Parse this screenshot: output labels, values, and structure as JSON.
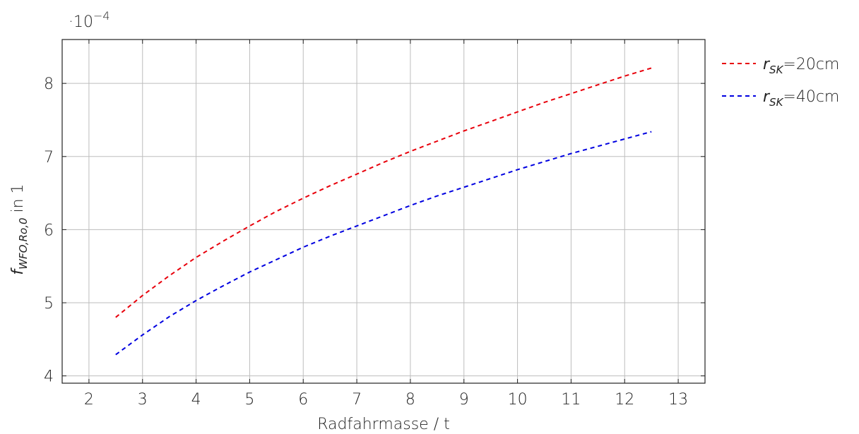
{
  "chart_data": {
    "type": "line",
    "xlabel": "Radfahrmasse / t",
    "ylabel_main": "f",
    "ylabel_sub": "WFO,Ro,0",
    "ylabel_suffix": " in 1",
    "y_scale_base": "·10",
    "y_scale_exp": "−4",
    "xlim": [
      1.5,
      13.5
    ],
    "ylim": [
      3.9,
      8.6
    ],
    "xticks": [
      2,
      3,
      4,
      5,
      6,
      7,
      8,
      9,
      10,
      11,
      12,
      13
    ],
    "yticks": [
      4,
      5,
      6,
      7,
      8
    ],
    "grid": true,
    "legend_position": "right",
    "series": [
      {
        "name_main": "r",
        "name_sub": "SK",
        "name_suffix": "=20cm",
        "color": "#e8000b",
        "dash": "dashed",
        "x": [
          2.5,
          3,
          3.5,
          4,
          4.5,
          5,
          5.5,
          6,
          6.5,
          7,
          7.5,
          8,
          8.5,
          9,
          9.5,
          10,
          10.5,
          11,
          11.5,
          12,
          12.5
        ],
        "y": [
          4.8,
          5.1,
          5.37,
          5.62,
          5.84,
          6.05,
          6.25,
          6.43,
          6.6,
          6.76,
          6.92,
          7.07,
          7.21,
          7.35,
          7.48,
          7.61,
          7.74,
          7.86,
          7.98,
          8.1,
          8.21
        ]
      },
      {
        "name_main": "r",
        "name_sub": "SK",
        "name_suffix": "=40cm",
        "color": "#0000e0",
        "dash": "dashed",
        "x": [
          2.5,
          3,
          3.5,
          4,
          4.5,
          5,
          5.5,
          6,
          6.5,
          7,
          7.5,
          8,
          8.5,
          9,
          9.5,
          10,
          10.5,
          11,
          11.5,
          12,
          12.5
        ],
        "y": [
          4.29,
          4.56,
          4.81,
          5.03,
          5.23,
          5.42,
          5.59,
          5.76,
          5.91,
          6.05,
          6.19,
          6.33,
          6.46,
          6.58,
          6.7,
          6.82,
          6.93,
          7.04,
          7.14,
          7.24,
          7.34
        ]
      }
    ]
  }
}
